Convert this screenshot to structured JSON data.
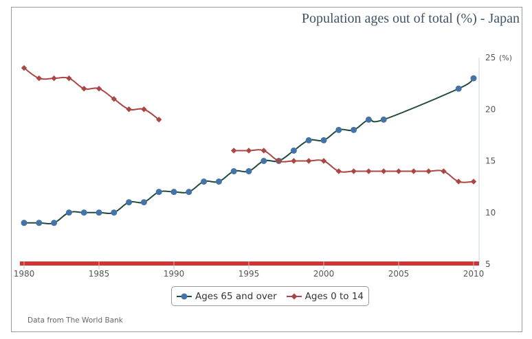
{
  "chart_data": {
    "type": "line",
    "title": "Population ages out of total (%) - Japan",
    "xlabel": "",
    "ylabel": "",
    "y_unit_label": "(%)",
    "x_ticks": [
      1980,
      1985,
      1990,
      1995,
      2000,
      2005,
      2010
    ],
    "y_ticks": [
      5,
      10,
      15,
      20,
      25
    ],
    "xlim": [
      1980,
      2010
    ],
    "ylim": [
      5,
      25
    ],
    "y_axis_position": "right",
    "legend_position": "bottom",
    "grid": false,
    "series": [
      {
        "name": "Ages 65 and over",
        "color": "#4572a7",
        "line_color": "#1f4a3c",
        "marker": "circle",
        "points": [
          [
            1980,
            9
          ],
          [
            1981,
            9
          ],
          [
            1982,
            9
          ],
          [
            1983,
            10
          ],
          [
            1984,
            10
          ],
          [
            1985,
            10
          ],
          [
            1986,
            10
          ],
          [
            1987,
            11
          ],
          [
            1988,
            11
          ],
          [
            1989,
            12
          ],
          [
            1990,
            12
          ],
          [
            1991,
            12
          ],
          [
            1992,
            13
          ],
          [
            1993,
            13
          ],
          [
            1994,
            14
          ],
          [
            1995,
            14
          ],
          [
            1996,
            15
          ],
          [
            1997,
            15
          ],
          [
            1998,
            16
          ],
          [
            1999,
            17
          ],
          [
            2000,
            17
          ],
          [
            2001,
            18
          ],
          [
            2002,
            18
          ],
          [
            2003,
            19
          ],
          [
            2004,
            19
          ],
          [
            2009,
            22
          ],
          [
            2010,
            23
          ]
        ]
      },
      {
        "name": "Ages 0 to 14",
        "color": "#aa4643",
        "line_color": "#aa4643",
        "marker": "diamond",
        "segments": [
          [
            [
              1980,
              24
            ],
            [
              1981,
              23
            ],
            [
              1982,
              23
            ],
            [
              1983,
              23
            ],
            [
              1984,
              22
            ],
            [
              1985,
              22
            ],
            [
              1986,
              21
            ],
            [
              1987,
              20
            ],
            [
              1988,
              20
            ],
            [
              1989,
              19
            ]
          ],
          [
            [
              1994,
              16
            ],
            [
              1995,
              16
            ],
            [
              1996,
              16
            ],
            [
              1997,
              15
            ],
            [
              1998,
              15
            ],
            [
              1999,
              15
            ],
            [
              2000,
              15
            ],
            [
              2001,
              14
            ],
            [
              2002,
              14
            ],
            [
              2003,
              14
            ],
            [
              2004,
              14
            ],
            [
              2005,
              14
            ],
            [
              2006,
              14
            ],
            [
              2007,
              14
            ],
            [
              2008,
              14
            ],
            [
              2009,
              13
            ],
            [
              2010,
              13
            ]
          ]
        ]
      }
    ]
  },
  "credit": "Data from The World Bank"
}
